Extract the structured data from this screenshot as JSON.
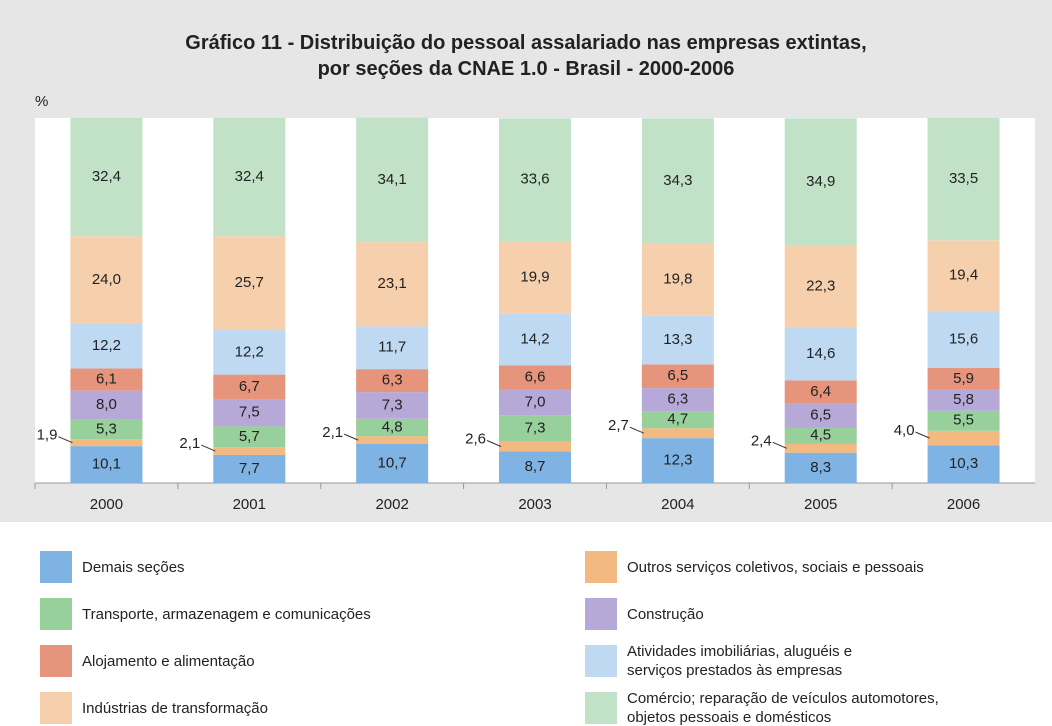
{
  "chart_data": {
    "type": "stacked_bar",
    "title": "Gráfico 11 - Distribuição do pessoal assalariado nas empresas extintas,\npor seções da CNAE 1.0 - Brasil - 2000-2006",
    "y_label": "%",
    "categories": [
      "2000",
      "2001",
      "2002",
      "2003",
      "2004",
      "2005",
      "2006"
    ],
    "ylim": [
      0,
      100
    ],
    "series": [
      {
        "name": "Demais seções",
        "color": "#7fb3e3",
        "values": [
          10.1,
          7.7,
          10.7,
          8.7,
          12.3,
          8.3,
          10.3
        ],
        "value_labels": [
          "10,1",
          "7,7",
          "10,7",
          "8,7",
          "12,3",
          "8,3",
          "10,3"
        ]
      },
      {
        "name": "Outros serviços coletivos, sociais e pessoais",
        "color": "#f2b981",
        "values": [
          1.9,
          2.1,
          2.1,
          2.6,
          2.7,
          2.4,
          4.0
        ],
        "value_labels": [
          "1,9",
          "2,1",
          "2,1",
          "2,6",
          "2,7",
          "2,4",
          "4,0"
        ]
      },
      {
        "name": "Transporte, armazenagem e comunicações",
        "color": "#97d09a",
        "values": [
          5.3,
          5.7,
          4.8,
          7.3,
          4.7,
          4.5,
          5.5
        ],
        "value_labels": [
          "5,3",
          "5,7",
          "4,8",
          "7,3",
          "4,7",
          "4,5",
          "5,5"
        ]
      },
      {
        "name": "Construção",
        "color": "#b6a9d8",
        "values": [
          8.0,
          7.5,
          7.3,
          7.0,
          6.3,
          6.5,
          5.8
        ],
        "value_labels": [
          "8,0",
          "7,5",
          "7,3",
          "7,0",
          "6,3",
          "6,5",
          "5,8"
        ]
      },
      {
        "name": "Alojamento e alimentação",
        "color": "#e6957c",
        "values": [
          6.1,
          6.7,
          6.3,
          6.6,
          6.5,
          6.4,
          5.9
        ],
        "value_labels": [
          "6,1",
          "6,7",
          "6,3",
          "6,6",
          "6,5",
          "6,4",
          "5,9"
        ]
      },
      {
        "name": "Atividades imobiliárias, aluguéis e\nserviços prestados às empresas",
        "color": "#bfd9f2",
        "values": [
          12.2,
          12.2,
          11.7,
          14.2,
          13.3,
          14.6,
          15.6
        ],
        "value_labels": [
          "12,2",
          "12,2",
          "11,7",
          "14,2",
          "13,3",
          "14,6",
          "15,6"
        ]
      },
      {
        "name": "Indústrias de transformação",
        "color": "#f6d0ad",
        "values": [
          24.0,
          25.7,
          23.1,
          19.9,
          19.8,
          22.3,
          19.4
        ],
        "value_labels": [
          "24,0",
          "25,7",
          "23,1",
          "19,9",
          "19,8",
          "22,3",
          "19,4"
        ]
      },
      {
        "name": "Comércio; reparação de veículos automotores,\nobjetos pessoais e domésticos",
        "color": "#c1e2c6",
        "values": [
          32.4,
          32.4,
          34.1,
          33.6,
          34.3,
          34.9,
          33.5
        ],
        "value_labels": [
          "32,4",
          "32,4",
          "34,1",
          "33,6",
          "34,3",
          "34,9",
          "33,5"
        ]
      }
    ]
  }
}
